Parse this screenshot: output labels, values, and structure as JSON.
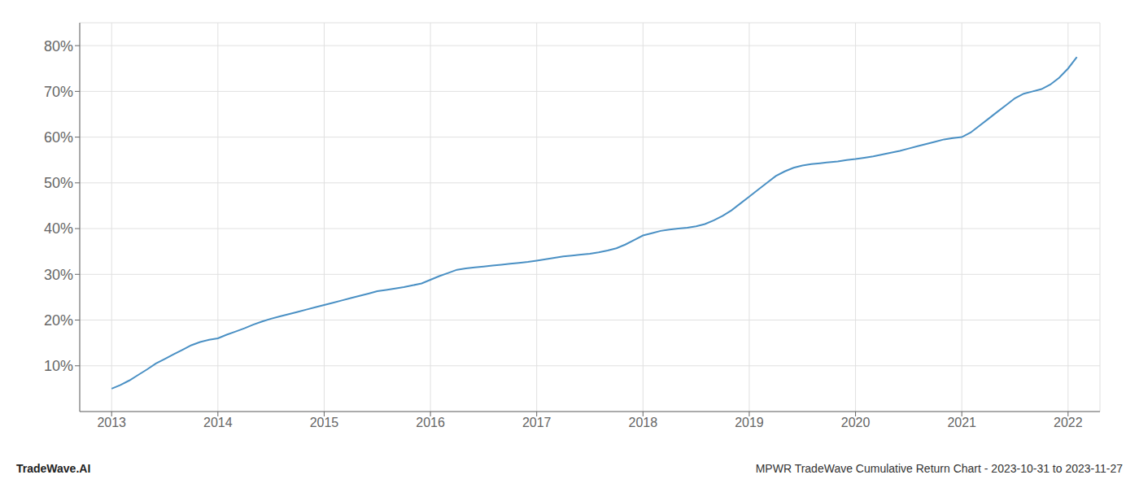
{
  "chart_data": {
    "type": "line",
    "x": [
      2013.0,
      2013.083,
      2013.167,
      2013.25,
      2013.333,
      2013.417,
      2013.5,
      2013.583,
      2013.667,
      2013.75,
      2013.833,
      2013.917,
      2014.0,
      2014.083,
      2014.167,
      2014.25,
      2014.333,
      2014.417,
      2014.5,
      2014.583,
      2014.667,
      2014.75,
      2014.833,
      2014.917,
      2015.0,
      2015.083,
      2015.167,
      2015.25,
      2015.333,
      2015.417,
      2015.5,
      2015.583,
      2015.667,
      2015.75,
      2015.833,
      2015.917,
      2016.0,
      2016.083,
      2016.167,
      2016.25,
      2016.333,
      2016.417,
      2016.5,
      2016.583,
      2016.667,
      2016.75,
      2016.833,
      2016.917,
      2017.0,
      2017.083,
      2017.167,
      2017.25,
      2017.333,
      2017.417,
      2017.5,
      2017.583,
      2017.667,
      2017.75,
      2017.833,
      2017.917,
      2018.0,
      2018.083,
      2018.167,
      2018.25,
      2018.333,
      2018.417,
      2018.5,
      2018.583,
      2018.667,
      2018.75,
      2018.833,
      2018.917,
      2019.0,
      2019.083,
      2019.167,
      2019.25,
      2019.333,
      2019.417,
      2019.5,
      2019.583,
      2019.667,
      2019.75,
      2019.833,
      2019.917,
      2020.0,
      2020.083,
      2020.167,
      2020.25,
      2020.333,
      2020.417,
      2020.5,
      2020.583,
      2020.667,
      2020.75,
      2020.833,
      2020.917,
      2021.0,
      2021.083,
      2021.167,
      2021.25,
      2021.333,
      2021.417,
      2021.5,
      2021.583,
      2021.667,
      2021.75,
      2021.833,
      2021.917,
      2022.0,
      2022.083
    ],
    "values": [
      5.0,
      5.8,
      6.8,
      8.0,
      9.2,
      10.5,
      11.5,
      12.5,
      13.5,
      14.5,
      15.2,
      15.7,
      16.0,
      16.8,
      17.5,
      18.2,
      19.0,
      19.7,
      20.3,
      20.8,
      21.3,
      21.8,
      22.3,
      22.8,
      23.3,
      23.8,
      24.3,
      24.8,
      25.3,
      25.8,
      26.3,
      26.6,
      26.9,
      27.2,
      27.6,
      28.0,
      28.8,
      29.6,
      30.3,
      31.0,
      31.3,
      31.5,
      31.7,
      31.9,
      32.1,
      32.3,
      32.5,
      32.7,
      33.0,
      33.3,
      33.6,
      33.9,
      34.1,
      34.3,
      34.5,
      34.8,
      35.2,
      35.7,
      36.5,
      37.5,
      38.5,
      39.0,
      39.5,
      39.8,
      40.0,
      40.2,
      40.5,
      41.0,
      41.8,
      42.8,
      44.0,
      45.5,
      47.0,
      48.5,
      50.0,
      51.5,
      52.5,
      53.3,
      53.8,
      54.1,
      54.3,
      54.5,
      54.7,
      55.0,
      55.2,
      55.5,
      55.8,
      56.2,
      56.6,
      57.0,
      57.5,
      58.0,
      58.5,
      59.0,
      59.5,
      59.8,
      60.0,
      61.0,
      62.5,
      64.0,
      65.5,
      67.0,
      68.5,
      69.5,
      70.0,
      70.5,
      71.5,
      73.0,
      75.0,
      77.5
    ],
    "color": "#4a90c4",
    "xlim": [
      2012.7,
      2022.3
    ],
    "ylim": [
      0,
      85
    ],
    "xticks": [
      2013,
      2014,
      2015,
      2016,
      2017,
      2018,
      2019,
      2020,
      2021,
      2022
    ],
    "yticks": [
      {
        "value": 10,
        "label": "10%"
      },
      {
        "value": 20,
        "label": "20%"
      },
      {
        "value": 30,
        "label": "30%"
      },
      {
        "value": 40,
        "label": "40%"
      },
      {
        "value": 50,
        "label": "50%"
      },
      {
        "value": 60,
        "label": "60%"
      },
      {
        "value": 70,
        "label": "70%"
      },
      {
        "value": 80,
        "label": "80%"
      }
    ],
    "grid": true,
    "annotations": [
      "TradeWave.AI",
      "MPWR TradeWave Cumulative Return Chart - 2023-10-31 to 2023-11-27"
    ]
  }
}
